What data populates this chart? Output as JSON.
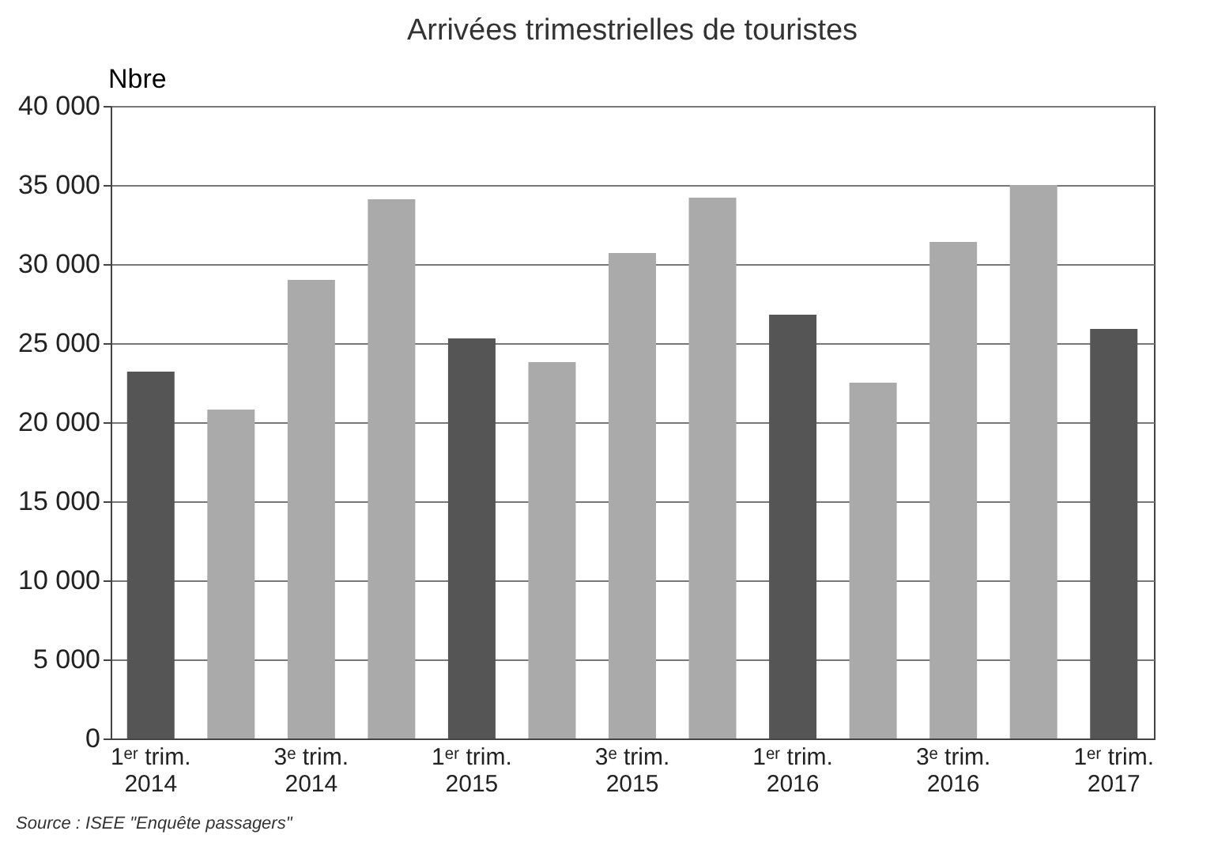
{
  "chart_data": {
    "type": "bar",
    "title": "Arrivées trimestrielles de touristes",
    "ylabel": "Nbre",
    "categories": [
      "1ᵉʳ trim.\n2014",
      null,
      "3ᵉ trim.\n2014",
      null,
      "1ᵉʳ trim.\n2015",
      null,
      "3ᵉ trim.\n2015",
      null,
      "1ᵉʳ trim.\n2016",
      null,
      "3ᵉ trim.\n2016",
      null,
      "1ᵉʳ trim.\n2017"
    ],
    "values": [
      23200,
      20800,
      29000,
      34100,
      25300,
      23800,
      30700,
      34200,
      26800,
      22500,
      31400,
      35000,
      25900
    ],
    "colors": [
      "#555555",
      "#aaaaaa",
      "#aaaaaa",
      "#aaaaaa",
      "#555555",
      "#aaaaaa",
      "#aaaaaa",
      "#aaaaaa",
      "#555555",
      "#aaaaaa",
      "#aaaaaa",
      "#aaaaaa",
      "#555555"
    ],
    "ylim": [
      0,
      40000
    ],
    "yticks": [
      0,
      {
        "value": 5000,
        "label": "5 000"
      },
      {
        "value": 10000,
        "label": "10 000"
      },
      {
        "value": 15000,
        "label": "15 000"
      },
      {
        "value": 20000,
        "label": "20 000"
      },
      {
        "value": 25000,
        "label": "25 000"
      },
      {
        "value": 30000,
        "label": "30 000"
      },
      {
        "value": 35000,
        "label": "35 000"
      },
      {
        "value": 40000,
        "label": "40 000"
      }
    ],
    "grid": "y",
    "annotations": [
      "Source : ISEE \"Enquête passagers\""
    ]
  }
}
